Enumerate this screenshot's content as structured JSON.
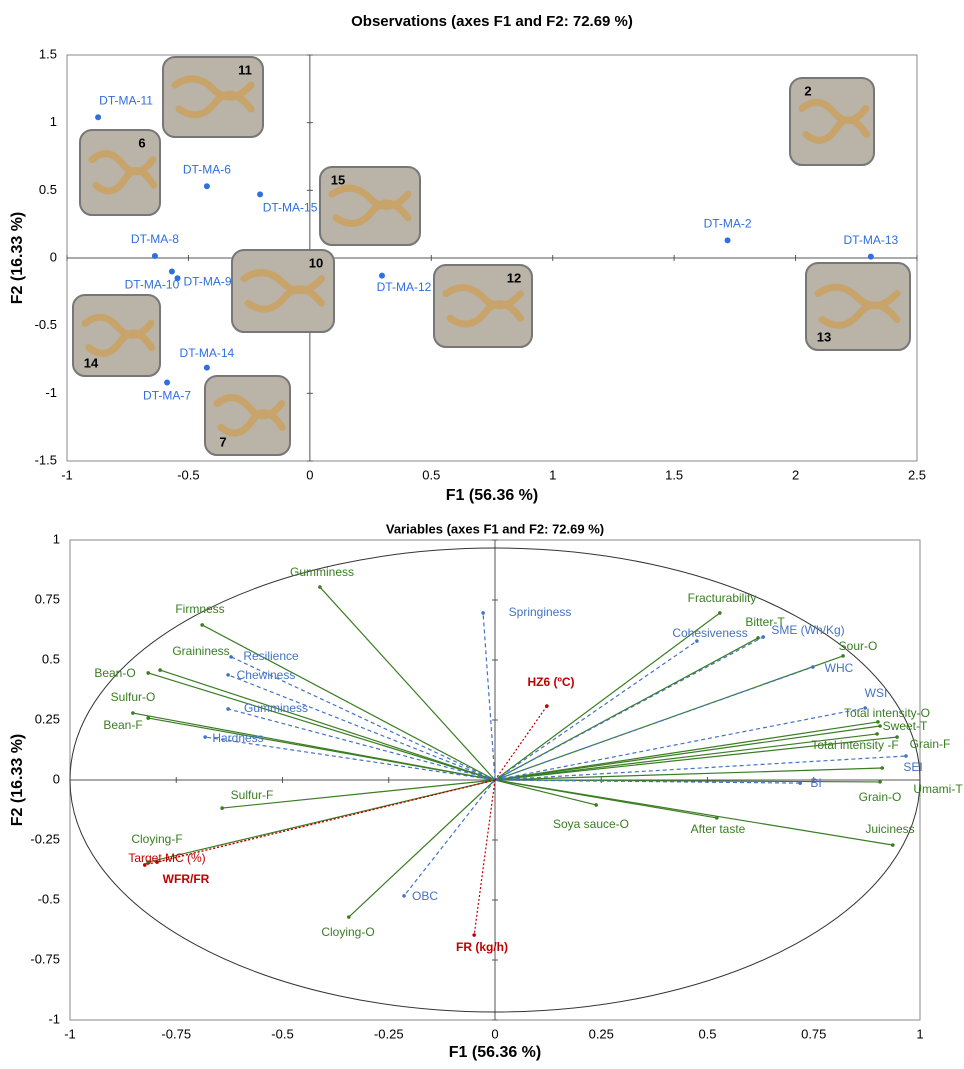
{
  "chart_data": [
    {
      "type": "scatter",
      "title": "Observations (axes F1 and F2: 72.69 %)",
      "x_label": "F1 (56.36 %)",
      "y_label": "F2 (16.33 %)",
      "xlim": [
        -1,
        2.5
      ],
      "ylim": [
        -1.5,
        1.5
      ],
      "xticks": [
        -1,
        -0.5,
        0,
        0.5,
        1,
        1.5,
        2,
        2.5
      ],
      "yticks": [
        -1.5,
        -1,
        -0.5,
        0,
        0.5,
        1,
        1.5
      ],
      "color": "#2f6fe0",
      "points": [
        {
          "label": "DT-MA-11",
          "x": -0.872,
          "y": 1.04
        },
        {
          "label": "DT-MA-6",
          "x": -0.424,
          "y": 0.53
        },
        {
          "label": "DT-MA-15",
          "x": -0.205,
          "y": 0.47
        },
        {
          "label": "DT-MA-8",
          "x": -0.638,
          "y": 0.015
        },
        {
          "label": "DT-MA-10",
          "x": -0.568,
          "y": -0.1
        },
        {
          "label": "DT-MA-9",
          "x": -0.545,
          "y": -0.15
        },
        {
          "label": "DT-MA-12",
          "x": 0.297,
          "y": -0.13
        },
        {
          "label": "DT-MA-14",
          "x": -0.424,
          "y": -0.81
        },
        {
          "label": "DT-MA-7",
          "x": -0.588,
          "y": -0.92
        },
        {
          "label": "DT-MA-2",
          "x": 1.72,
          "y": 0.13
        },
        {
          "label": "DT-MA-13",
          "x": 2.31,
          "y": 0.01
        }
      ],
      "thumbnails": [
        "11",
        "6",
        "15",
        "10",
        "12",
        "2",
        "13",
        "14",
        "7"
      ]
    },
    {
      "type": "biplot",
      "title": "Variables (axes F1 and F2: 72.69 %)",
      "x_label": "F1 (56.36 %)",
      "y_label": "F2 (16.33 %)",
      "xlim": [
        -1,
        1
      ],
      "ylim": [
        -1,
        1
      ],
      "xticks": [
        -1,
        -0.75,
        -0.5,
        -0.25,
        0,
        0.25,
        0.5,
        0.75,
        1
      ],
      "yticks": [
        -1,
        -0.75,
        -0.5,
        -0.25,
        0,
        0.25,
        0.5,
        0.75,
        1
      ],
      "variables": [
        {
          "label": "Gumminess",
          "x": -0.412,
          "y": 0.804,
          "color": "#3a7d22",
          "style": "solid"
        },
        {
          "label": "Firmness",
          "x": -0.689,
          "y": 0.646,
          "color": "#3a7d22",
          "style": "solid"
        },
        {
          "label": "Graininess",
          "x": -0.788,
          "y": 0.458,
          "color": "#3a7d22",
          "style": "solid"
        },
        {
          "label": "Bean-O",
          "x": -0.816,
          "y": 0.446,
          "color": "#3a7d22",
          "style": "solid"
        },
        {
          "label": "Sulfur-O",
          "x": -0.852,
          "y": 0.279,
          "color": "#3a7d22",
          "style": "solid"
        },
        {
          "label": "Bean-F",
          "x": -0.816,
          "y": 0.258,
          "color": "#3a7d22",
          "style": "solid"
        },
        {
          "label": "Sulfur-F",
          "x": -0.642,
          "y": -0.117,
          "color": "#3a7d22",
          "style": "solid"
        },
        {
          "label": "Cloying-F",
          "x": -0.816,
          "y": -0.342,
          "color": "#3a7d22",
          "style": "solid"
        },
        {
          "label": "Cloying-O",
          "x": -0.344,
          "y": -0.571,
          "color": "#3a7d22",
          "style": "solid"
        },
        {
          "label": "Fracturability",
          "x": 0.529,
          "y": 0.696,
          "color": "#3a7d22",
          "style": "solid"
        },
        {
          "label": "Bitter-T",
          "x": 0.619,
          "y": 0.592,
          "color": "#3a7d22",
          "style": "solid"
        },
        {
          "label": "Sour-O",
          "x": 0.819,
          "y": 0.517,
          "color": "#3a7d22",
          "style": "solid"
        },
        {
          "label": "Total intensity-O",
          "x": 0.901,
          "y": 0.242,
          "color": "#3a7d22",
          "style": "solid"
        },
        {
          "label": "Sweet-T",
          "x": 0.906,
          "y": 0.225,
          "color": "#3a7d22",
          "style": "solid"
        },
        {
          "label": "Total intensity -F",
          "x": 0.899,
          "y": 0.192,
          "color": "#3a7d22",
          "style": "solid"
        },
        {
          "label": "Grain-F",
          "x": 0.946,
          "y": 0.179,
          "color": "#3a7d22",
          "style": "solid"
        },
        {
          "label": "Umami-T",
          "x": 0.911,
          "y": 0.05,
          "color": "#3a7d22",
          "style": "solid"
        },
        {
          "label": "Grain-O",
          "x": 0.906,
          "y": -0.008,
          "color": "#3a7d22",
          "style": "solid"
        },
        {
          "label": "Juiciness",
          "x": 0.936,
          "y": -0.271,
          "color": "#3a7d22",
          "style": "solid"
        },
        {
          "label": "Soya sauce-O",
          "x": 0.238,
          "y": -0.104,
          "color": "#3a7d22",
          "style": "solid"
        },
        {
          "label": "After taste",
          "x": 0.522,
          "y": -0.158,
          "color": "#3a7d22",
          "style": "solid"
        },
        {
          "label": "Springiness",
          "x": -0.028,
          "y": 0.696,
          "color": "#4472c4",
          "style": "dashed"
        },
        {
          "label": "Resilience",
          "x": -0.621,
          "y": 0.513,
          "color": "#4472c4",
          "style": "dashed"
        },
        {
          "label": "Chewiness",
          "x": -0.628,
          "y": 0.438,
          "color": "#4472c4",
          "style": "dashed"
        },
        {
          "label": "Gumminess",
          "x": -0.628,
          "y": 0.296,
          "color": "#4472c4",
          "style": "dashed"
        },
        {
          "label": "Hardness",
          "x": -0.682,
          "y": 0.179,
          "color": "#4472c4",
          "style": "dashed"
        },
        {
          "label": "Cohesiveness",
          "x": 0.475,
          "y": 0.579,
          "color": "#4472c4",
          "style": "dashed"
        },
        {
          "label": "SME (Wh/Kg)",
          "x": 0.631,
          "y": 0.596,
          "color": "#4472c4",
          "style": "dashed"
        },
        {
          "label": "WHC",
          "x": 0.748,
          "y": 0.471,
          "color": "#4472c4",
          "style": "dashed"
        },
        {
          "label": "WSI",
          "x": 0.871,
          "y": 0.3,
          "color": "#4472c4",
          "style": "dashed"
        },
        {
          "label": "SEI",
          "x": 0.967,
          "y": 0.1,
          "color": "#4472c4",
          "style": "dashed"
        },
        {
          "label": "BI",
          "x": 0.718,
          "y": -0.013,
          "color": "#4472c4",
          "style": "dashed"
        },
        {
          "label": "OBC",
          "x": -0.214,
          "y": -0.483,
          "color": "#4472c4",
          "style": "dashed"
        },
        {
          "label": "HZ6 (ºC)",
          "x": 0.122,
          "y": 0.308,
          "color": "#c00000",
          "style": "dotted",
          "bold": true
        },
        {
          "label": "Target MC (%)",
          "x": -0.795,
          "y": -0.342,
          "color": "#c00000",
          "style": "dotted"
        },
        {
          "label": "WFR/FR",
          "x": -0.824,
          "y": -0.354,
          "color": "#c00000",
          "style": "dotted",
          "bold": true
        },
        {
          "label": "FR (kg/h)",
          "x": -0.049,
          "y": -0.646,
          "color": "#c00000",
          "style": "dotted",
          "bold": true
        }
      ]
    }
  ]
}
